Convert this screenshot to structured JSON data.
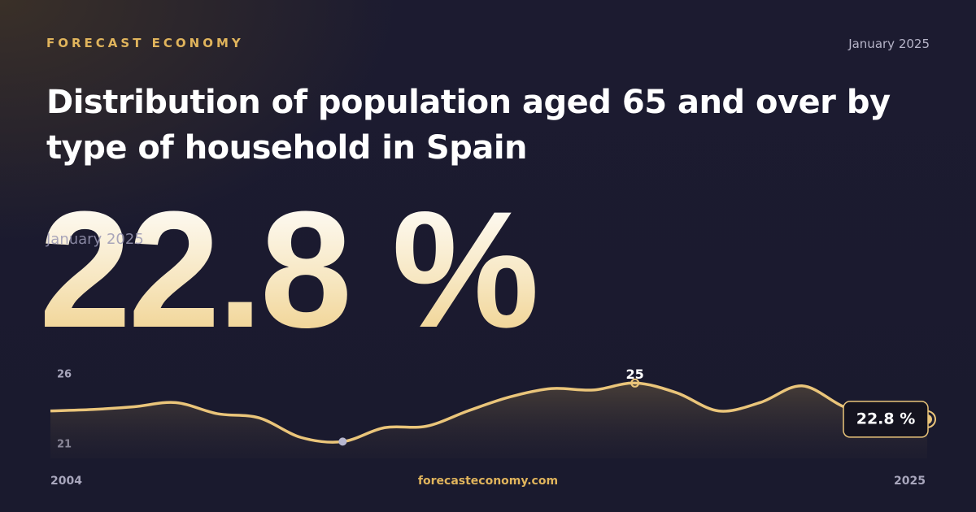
{
  "brand": "FORECAST ECONOMY",
  "date": "January 2025",
  "title": "Distribution of population aged 65 and over by type of household in Spain",
  "headline": {
    "value_label": "22.8 %",
    "date": "January 2025"
  },
  "footer": "forecasteconomy.com",
  "chart_data": {
    "type": "line",
    "x": [
      2004,
      2005,
      2006,
      2007,
      2008,
      2009,
      2010,
      2011,
      2012,
      2013,
      2014,
      2015,
      2016,
      2017,
      2018,
      2019,
      2020,
      2021,
      2022,
      2023,
      2024,
      2025
    ],
    "series": [
      {
        "color": "#eac57a",
        "values": [
          23.4,
          23.5,
          23.7,
          24.0,
          23.2,
          22.9,
          21.5,
          21.2,
          22.2,
          22.3,
          23.4,
          24.4,
          25.0,
          24.9,
          25.4,
          24.7,
          23.4,
          24.0,
          25.2,
          23.7,
          22.7,
          22.8
        ],
        "value_labels": [
          null,
          null,
          null,
          null,
          null,
          null,
          null,
          null,
          null,
          null,
          null,
          null,
          null,
          null,
          "25",
          null,
          null,
          null,
          null,
          null,
          null,
          "22.8 %"
        ]
      }
    ],
    "xlim": [
      2004,
      2025
    ],
    "xticks": [
      2004,
      2025
    ],
    "ylim": [
      20,
      26
    ],
    "yticks": [
      21,
      26
    ]
  }
}
